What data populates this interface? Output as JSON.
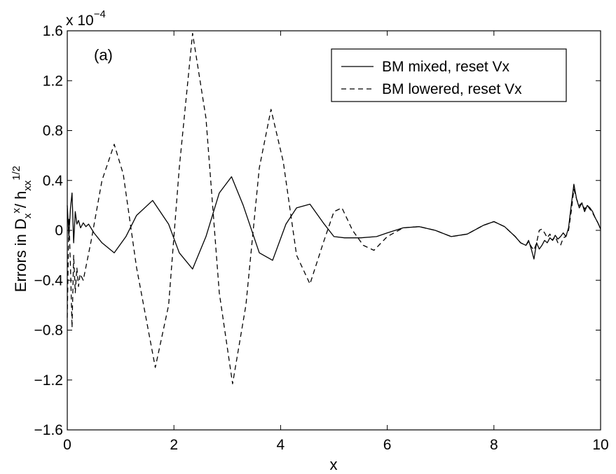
{
  "chart_data": {
    "type": "line",
    "annotation": "(a)",
    "xlabel": "x",
    "ylabel": {
      "prefix": "Errors in D",
      "sub1": "x",
      "sup1": "x",
      "mid": "/ h",
      "sub2": "xx",
      "sup2": "1/2"
    },
    "y_scale_factor": {
      "base": "x 10",
      "exponent": "−4"
    },
    "xlim": [
      0,
      10
    ],
    "ylim": [
      -1.6,
      1.6
    ],
    "xticks": [
      0,
      2,
      4,
      6,
      8,
      10
    ],
    "yticks": [
      -1.6,
      -1.2,
      -0.8,
      -0.4,
      0,
      0.4,
      0.8,
      1.2,
      1.6
    ],
    "xtick_labels": [
      "0",
      "2",
      "4",
      "6",
      "8",
      "10"
    ],
    "ytick_labels": [
      "−1.6",
      "−1.2",
      "−0.8",
      "−0.4",
      "0",
      "0.4",
      "0.8",
      "1.2",
      "1.6"
    ],
    "grid": false,
    "legend_position": "top-right",
    "series": [
      {
        "name": "BM mixed, reset Vx",
        "style": "solid",
        "color": "#000000",
        "x": [
          0,
          0.03,
          0.06,
          0.09,
          0.12,
          0.15,
          0.18,
          0.21,
          0.25,
          0.3,
          0.35,
          0.4,
          0.5,
          0.65,
          0.88,
          1.1,
          1.3,
          1.6,
          1.9,
          2.1,
          2.35,
          2.6,
          2.85,
          3.08,
          3.3,
          3.6,
          3.85,
          4.1,
          4.3,
          4.55,
          4.8,
          5.0,
          5.2,
          5.5,
          5.8,
          6.0,
          6.3,
          6.6,
          6.9,
          7.2,
          7.5,
          7.8,
          8.0,
          8.2,
          8.4,
          8.5,
          8.6,
          8.65,
          8.7,
          8.75,
          8.8,
          8.85,
          8.9,
          8.95,
          9.0,
          9.05,
          9.1,
          9.15,
          9.2,
          9.25,
          9.3,
          9.35,
          9.4,
          9.45,
          9.5,
          9.55,
          9.6,
          9.65,
          9.7,
          9.75,
          9.8,
          9.85,
          9.9,
          9.95,
          10.0
        ],
        "y": [
          0.2,
          -0.05,
          0.18,
          0.3,
          -0.1,
          0.15,
          0.05,
          0.08,
          0.02,
          0.06,
          0.03,
          0.05,
          -0.02,
          -0.1,
          -0.18,
          -0.05,
          0.12,
          0.24,
          0.05,
          -0.18,
          -0.31,
          -0.05,
          0.3,
          0.43,
          0.2,
          -0.18,
          -0.24,
          0.05,
          0.18,
          0.21,
          0.06,
          -0.05,
          -0.06,
          -0.06,
          -0.05,
          -0.02,
          0.02,
          0.03,
          0.0,
          -0.05,
          -0.03,
          0.04,
          0.07,
          0.03,
          -0.05,
          -0.1,
          -0.12,
          -0.08,
          -0.15,
          -0.23,
          -0.1,
          -0.15,
          -0.12,
          -0.08,
          -0.1,
          -0.06,
          -0.08,
          -0.04,
          -0.07,
          -0.05,
          -0.02,
          -0.05,
          0.02,
          0.2,
          0.37,
          0.25,
          0.18,
          0.22,
          0.15,
          0.2,
          0.18,
          0.15,
          0.1,
          0.06,
          0.01
        ]
      },
      {
        "name": "BM lowered, reset Vx",
        "style": "dashed",
        "color": "#000000",
        "x": [
          0,
          0.03,
          0.06,
          0.09,
          0.12,
          0.15,
          0.18,
          0.21,
          0.24,
          0.3,
          0.45,
          0.65,
          0.88,
          1.05,
          1.3,
          1.65,
          1.9,
          2.1,
          2.35,
          2.6,
          2.85,
          3.1,
          3.35,
          3.6,
          3.82,
          4.05,
          4.3,
          4.55,
          4.8,
          5.0,
          5.15,
          5.35,
          5.55,
          5.75,
          6.0,
          6.3,
          6.6,
          6.9,
          7.2,
          7.5,
          7.8,
          8.0,
          8.2,
          8.4,
          8.5,
          8.6,
          8.65,
          8.7,
          8.75,
          8.8,
          8.85,
          8.9,
          8.95,
          9.0,
          9.05,
          9.1,
          9.15,
          9.2,
          9.25,
          9.3,
          9.35,
          9.4,
          9.45,
          9.5,
          9.55,
          9.6,
          9.65,
          9.7,
          9.75,
          9.8,
          9.85,
          9.9,
          9.95,
          10.0
        ],
        "y": [
          -0.7,
          0.1,
          -0.3,
          -0.78,
          -0.2,
          -0.5,
          -0.3,
          -0.45,
          -0.35,
          -0.4,
          -0.08,
          0.4,
          0.69,
          0.45,
          -0.3,
          -1.1,
          -0.6,
          0.5,
          1.58,
          0.9,
          -0.5,
          -1.23,
          -0.6,
          0.5,
          0.97,
          0.55,
          -0.2,
          -0.43,
          -0.1,
          0.15,
          0.18,
          0.0,
          -0.12,
          -0.16,
          -0.05,
          0.02,
          0.03,
          0.0,
          -0.05,
          -0.03,
          0.04,
          0.07,
          0.03,
          -0.05,
          -0.1,
          -0.12,
          -0.09,
          -0.13,
          -0.16,
          -0.1,
          0.0,
          0.01,
          -0.02,
          -0.06,
          -0.03,
          -0.08,
          -0.05,
          -0.1,
          -0.12,
          -0.06,
          -0.05,
          0.0,
          0.15,
          0.33,
          0.25,
          0.2,
          0.22,
          0.17,
          0.2,
          0.17,
          0.14,
          0.1,
          0.06,
          0.01
        ]
      }
    ]
  }
}
